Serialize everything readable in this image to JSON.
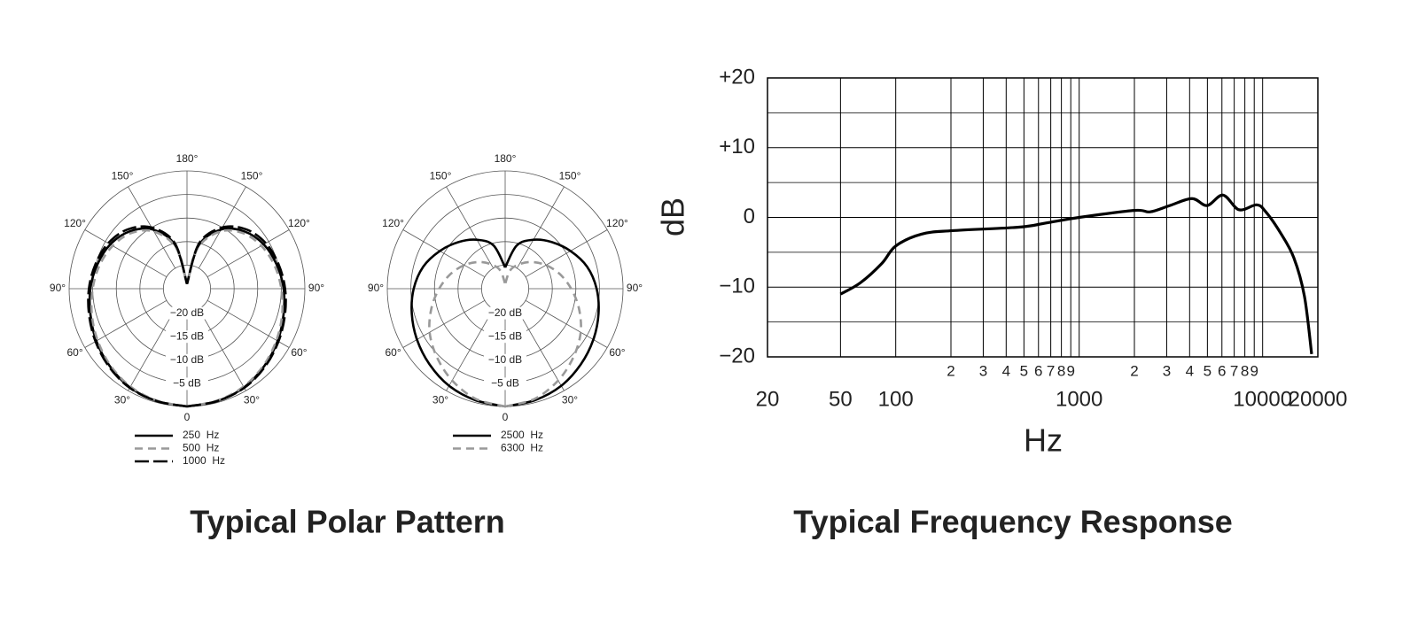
{
  "chart_data": [
    {
      "type": "polar",
      "title": "Typical Polar Pattern",
      "theta": [
        0,
        15,
        30,
        45,
        60,
        75,
        90,
        105,
        120,
        135,
        150,
        165,
        180
      ],
      "rlim": [
        -25,
        0
      ],
      "rticks": [
        {
          "value": -20,
          "label": "−20 dB"
        },
        {
          "value": -15,
          "label": "−15 dB"
        },
        {
          "value": -10,
          "label": "−10 dB"
        },
        {
          "value": -5,
          "label": "−5 dB"
        }
      ],
      "angle_ticks": [
        0,
        {
          "value": 30,
          "label": "30°"
        },
        {
          "value": 60,
          "label": "60°"
        },
        {
          "value": 90,
          "label": "90°"
        },
        {
          "value": 120,
          "label": "120°"
        },
        {
          "value": 150,
          "label": "150°"
        },
        {
          "value": 180,
          "label": "180°"
        }
      ],
      "series": [
        {
          "name": "250  Hz",
          "color": "#000000",
          "dash": "solid",
          "values": [
            0,
            -0.3,
            -0.8,
            -1.8,
            -2.8,
            -3.8,
            -4.5,
            -5.3,
            -6.2,
            -7.8,
            -10.5,
            -15.5,
            -24
          ]
        },
        {
          "name": "500  Hz",
          "color": "#999999",
          "dash": "dashed",
          "values": [
            0,
            -0.4,
            -1,
            -2,
            -3.1,
            -4.1,
            -5,
            -5.8,
            -6.8,
            -8.3,
            -11,
            -16,
            -24
          ]
        },
        {
          "name": "1000  Hz",
          "color": "#000000",
          "dash": "longdash",
          "values": [
            0,
            -0.3,
            -0.7,
            -1.6,
            -2.6,
            -3.5,
            -4.2,
            -4.9,
            -5.7,
            -7.2,
            -10,
            -15,
            -24
          ]
        }
      ]
    },
    {
      "type": "polar",
      "theta": [
        0,
        15,
        30,
        45,
        60,
        75,
        90,
        105,
        120,
        135,
        150,
        165,
        180
      ],
      "rlim": [
        -25,
        0
      ],
      "rticks": [
        {
          "value": -20,
          "label": "−20 dB"
        },
        {
          "value": -15,
          "label": "−15 dB"
        },
        {
          "value": -10,
          "label": "−10 dB"
        },
        {
          "value": -5,
          "label": "−5 dB"
        }
      ],
      "angle_ticks": [
        0,
        {
          "value": 30,
          "label": "30°"
        },
        {
          "value": 60,
          "label": "60°"
        },
        {
          "value": 90,
          "label": "90°"
        },
        {
          "value": 120,
          "label": "120°"
        },
        {
          "value": 150,
          "label": "150°"
        },
        {
          "value": 180,
          "label": "180°"
        }
      ],
      "series": [
        {
          "name": "2500  Hz",
          "color": "#000000",
          "dash": "solid",
          "values": [
            0,
            -0.5,
            -1.2,
            -2.3,
            -3.4,
            -4.5,
            -5.6,
            -7,
            -9,
            -11,
            -13,
            -15.5,
            -20.5
          ]
        },
        {
          "name": "6300  Hz",
          "color": "#999999",
          "dash": "dashed",
          "values": [
            0,
            -0.8,
            -2.5,
            -4.5,
            -6.5,
            -8.8,
            -11,
            -13,
            -15,
            -17,
            -19,
            -21,
            -24
          ]
        }
      ]
    },
    {
      "type": "line",
      "title": "Typical Frequency Response",
      "xlabel": "Hz",
      "ylabel": "dB",
      "log_x": true,
      "grid": true,
      "color": "#000000",
      "xlim": [
        20,
        20000
      ],
      "ylim": [
        -20,
        20
      ],
      "xticks": [
        20,
        50,
        100,
        {
          "value": 200,
          "label": "2"
        },
        {
          "value": 300,
          "label": "3"
        },
        {
          "value": 400,
          "label": "4"
        },
        {
          "value": 500,
          "label": "5"
        },
        {
          "value": 600,
          "label": "6"
        },
        {
          "value": 700,
          "label": "7"
        },
        {
          "value": 800,
          "label": "8"
        },
        {
          "value": 900,
          "label": "9"
        },
        1000,
        {
          "value": 2000,
          "label": "2"
        },
        {
          "value": 3000,
          "label": "3"
        },
        {
          "value": 4000,
          "label": "4"
        },
        {
          "value": 5000,
          "label": "5"
        },
        {
          "value": 6000,
          "label": "6"
        },
        {
          "value": 7000,
          "label": "7"
        },
        {
          "value": 8000,
          "label": "8"
        },
        {
          "value": 9000,
          "label": "9"
        },
        10000,
        20000
      ],
      "yticks": [
        {
          "value": -20,
          "label": "−20"
        },
        {
          "value": -10,
          "label": "−10"
        },
        0,
        {
          "value": 10,
          "label": "+10"
        },
        {
          "value": 20,
          "label": "+20"
        }
      ],
      "yminor": [
        -15,
        -5,
        5,
        15
      ],
      "x": [
        50,
        64,
        84,
        100,
        138,
        204,
        470,
        660,
        1000,
        2000,
        2440,
        3120,
        4120,
        4980,
        6080,
        7430,
        9280,
        10400,
        12500,
        14800,
        16900,
        18500
      ],
      "values": [
        -11,
        -9.4,
        -6.6,
        -4.1,
        -2.4,
        -1.9,
        -1.4,
        -0.8,
        0,
        1,
        0.8,
        1.7,
        2.7,
        1.7,
        3.2,
        1.1,
        1.8,
        0.8,
        -2.2,
        -5.8,
        -11.3,
        -19.6
      ]
    }
  ]
}
